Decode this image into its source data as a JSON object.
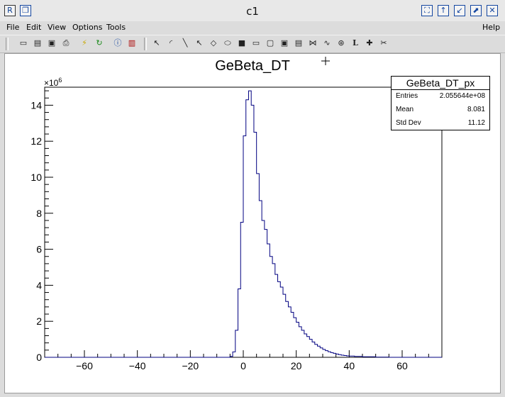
{
  "window": {
    "title": "c1",
    "controls": [
      "window-icon",
      "restore-icon",
      "fullscreen-icon",
      "maximize-up-icon",
      "shrink-icon",
      "maximize-icon",
      "close-icon"
    ]
  },
  "menu": {
    "file": "File",
    "edit": "Edit",
    "view": "View",
    "options": "Options",
    "tools": "Tools",
    "help": "Help"
  },
  "toolbar": {
    "icons": [
      "new-canvas-icon",
      "open-icon",
      "save-icon",
      "print-icon",
      "interrupt-icon",
      "refresh-icon",
      "inspect-icon",
      "browser-icon",
      "pointer-icon",
      "arc-icon",
      "line-icon",
      "arrow-icon",
      "diamond-icon",
      "ellipse-icon",
      "pad-icon",
      "pave-icon",
      "pavelabel-icon",
      "pavetext-icon",
      "pavestext-icon",
      "marker-icon",
      "graph-icon",
      "curly-icon",
      "latex-icon",
      "crosshair-icon",
      "cut-icon"
    ],
    "latex_label": "L"
  },
  "stats": {
    "title": "GeBeta_DT_px",
    "entries_label": "Entries",
    "entries_value": "2.055644e+08",
    "mean_label": "Mean",
    "mean_value": "8.081",
    "stddev_label": "Std Dev",
    "stddev_value": "11.12"
  },
  "chart_data": {
    "type": "bar",
    "title": "GeBeta_DT",
    "y_multiplier": "×10^6",
    "xlim": [
      -75,
      75
    ],
    "ylim": [
      0,
      15.0
    ],
    "xticks": [
      -60,
      -40,
      -20,
      0,
      20,
      40,
      60
    ],
    "yticks": [
      0,
      2,
      4,
      6,
      8,
      10,
      12,
      14
    ],
    "color": "#000080",
    "bin_width": 1,
    "bins": [
      {
        "x": -75,
        "y": 0.0
      },
      {
        "x": -5,
        "y": 0.05
      },
      {
        "x": -4,
        "y": 0.3
      },
      {
        "x": -3,
        "y": 1.5
      },
      {
        "x": -2,
        "y": 3.8
      },
      {
        "x": -1,
        "y": 7.5
      },
      {
        "x": 0,
        "y": 12.3
      },
      {
        "x": 1,
        "y": 14.3
      },
      {
        "x": 2,
        "y": 14.8
      },
      {
        "x": 3,
        "y": 14.0
      },
      {
        "x": 4,
        "y": 12.5
      },
      {
        "x": 5,
        "y": 10.2
      },
      {
        "x": 6,
        "y": 8.7
      },
      {
        "x": 7,
        "y": 7.6
      },
      {
        "x": 8,
        "y": 7.1
      },
      {
        "x": 9,
        "y": 6.3
      },
      {
        "x": 10,
        "y": 5.6
      },
      {
        "x": 11,
        "y": 5.2
      },
      {
        "x": 12,
        "y": 4.6
      },
      {
        "x": 13,
        "y": 4.2
      },
      {
        "x": 14,
        "y": 3.9
      },
      {
        "x": 15,
        "y": 3.5
      },
      {
        "x": 16,
        "y": 3.1
      },
      {
        "x": 17,
        "y": 2.8
      },
      {
        "x": 18,
        "y": 2.5
      },
      {
        "x": 19,
        "y": 2.2
      },
      {
        "x": 20,
        "y": 1.95
      },
      {
        "x": 21,
        "y": 1.7
      },
      {
        "x": 22,
        "y": 1.5
      },
      {
        "x": 23,
        "y": 1.3
      },
      {
        "x": 24,
        "y": 1.15
      },
      {
        "x": 25,
        "y": 1.0
      },
      {
        "x": 26,
        "y": 0.85
      },
      {
        "x": 27,
        "y": 0.72
      },
      {
        "x": 28,
        "y": 0.62
      },
      {
        "x": 29,
        "y": 0.52
      },
      {
        "x": 30,
        "y": 0.44
      },
      {
        "x": 31,
        "y": 0.37
      },
      {
        "x": 32,
        "y": 0.31
      },
      {
        "x": 33,
        "y": 0.26
      },
      {
        "x": 34,
        "y": 0.22
      },
      {
        "x": 35,
        "y": 0.18
      },
      {
        "x": 36,
        "y": 0.15
      },
      {
        "x": 37,
        "y": 0.12
      },
      {
        "x": 38,
        "y": 0.1
      },
      {
        "x": 39,
        "y": 0.08
      },
      {
        "x": 40,
        "y": 0.07
      },
      {
        "x": 42,
        "y": 0.05
      },
      {
        "x": 45,
        "y": 0.03
      },
      {
        "x": 50,
        "y": 0.01
      },
      {
        "x": 55,
        "y": 0.0
      }
    ]
  }
}
